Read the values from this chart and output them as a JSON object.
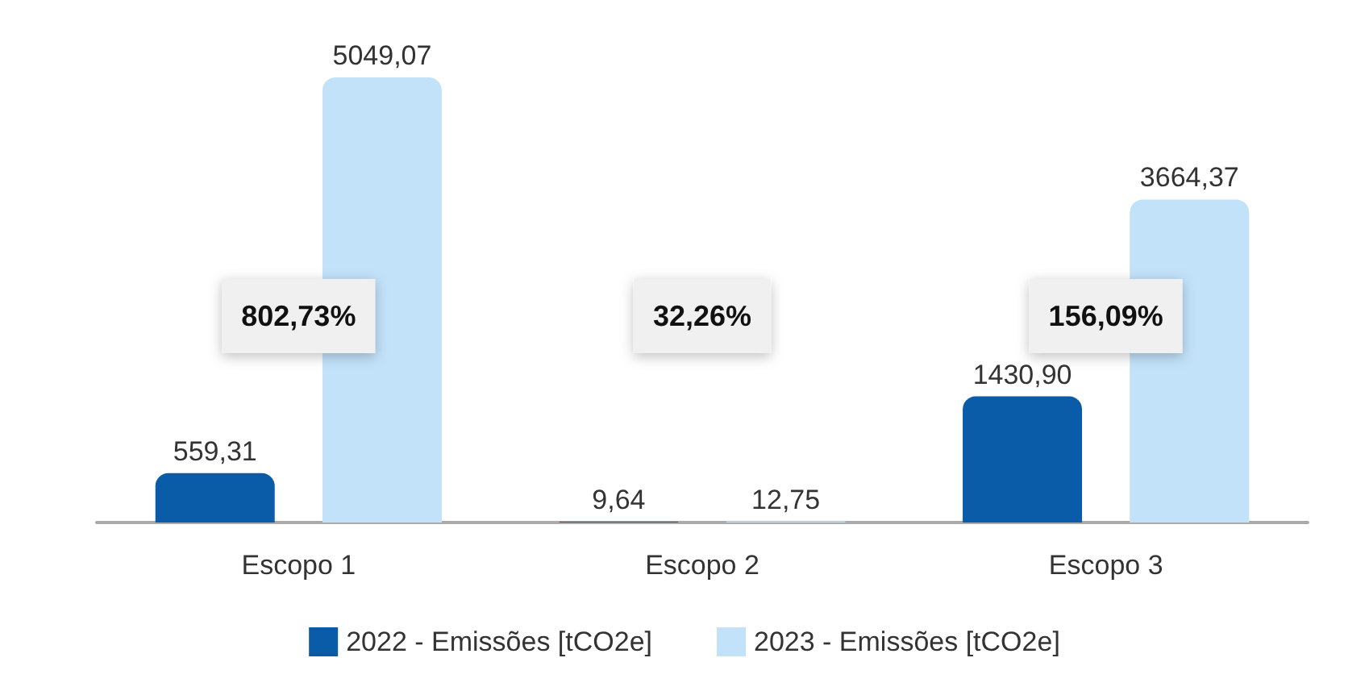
{
  "chart_data": {
    "type": "bar",
    "categories": [
      "Escopo 1",
      "Escopo 2",
      "Escopo 3"
    ],
    "series": [
      {
        "name": "2022 - Emissões [tCO2e]",
        "color": "#0b5ca8",
        "values": [
          559.31,
          9.64,
          1430.9
        ],
        "value_labels": [
          "559,31",
          "9,64",
          "1430,90"
        ]
      },
      {
        "name": "2023 - Emissões [tCO2e]",
        "color": "#c2e2fa",
        "values": [
          5049.07,
          12.75,
          3664.37
        ],
        "value_labels": [
          "5049,07",
          "12,75",
          "3664,37"
        ]
      }
    ],
    "annotations": [
      "802,73%",
      "32,26%",
      "156,09%"
    ],
    "legend": "bottom",
    "grid": false
  }
}
